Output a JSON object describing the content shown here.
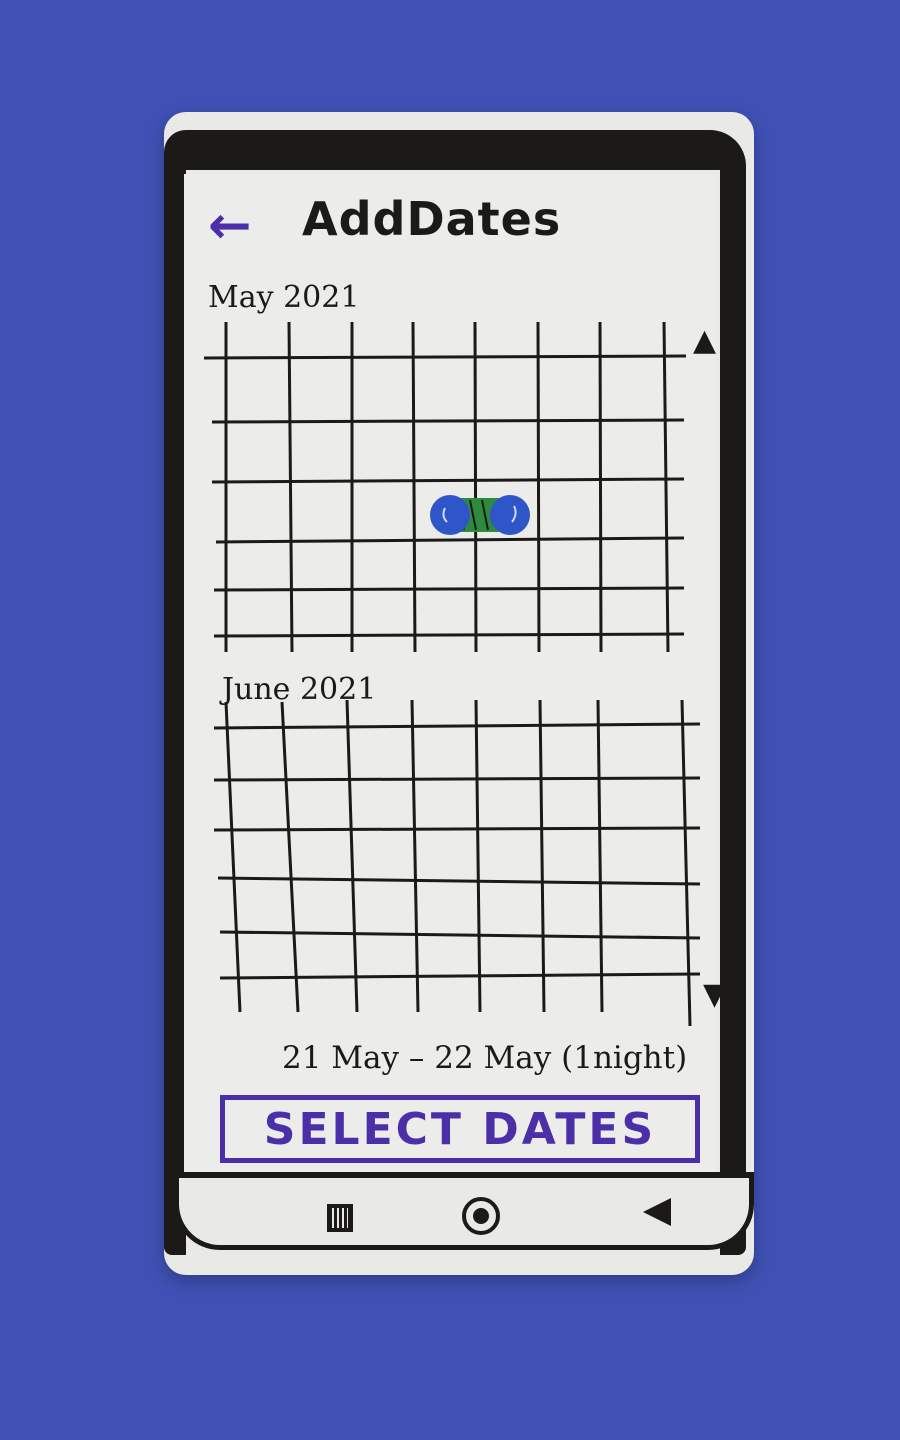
{
  "header": {
    "title": "AddDates",
    "back_icon": "arrow-left-icon"
  },
  "calendar": {
    "months": [
      {
        "label": "May 2021",
        "columns": 8,
        "rows": 6,
        "selected_range": "21 May – 22 May"
      },
      {
        "label": "June 2021",
        "columns": 8,
        "rows": 6
      }
    ],
    "scroll_up_icon": "arrow-up-icon",
    "scroll_down_icon": "arrow-down-icon"
  },
  "selection": {
    "summary": "21 May – 22 May (1night)"
  },
  "actions": {
    "select_label": "SELECT DATES"
  },
  "navbar": {
    "recents_icon": "recents-icon",
    "home_icon": "home-icon",
    "back_icon": "back-triangle-icon"
  },
  "colors": {
    "background": "#3f51b5",
    "accent": "#4b2fa8",
    "ink": "#1b1a19",
    "selection_fill": "#2e8b3e",
    "selection_endpoints": "#2f56c9"
  }
}
